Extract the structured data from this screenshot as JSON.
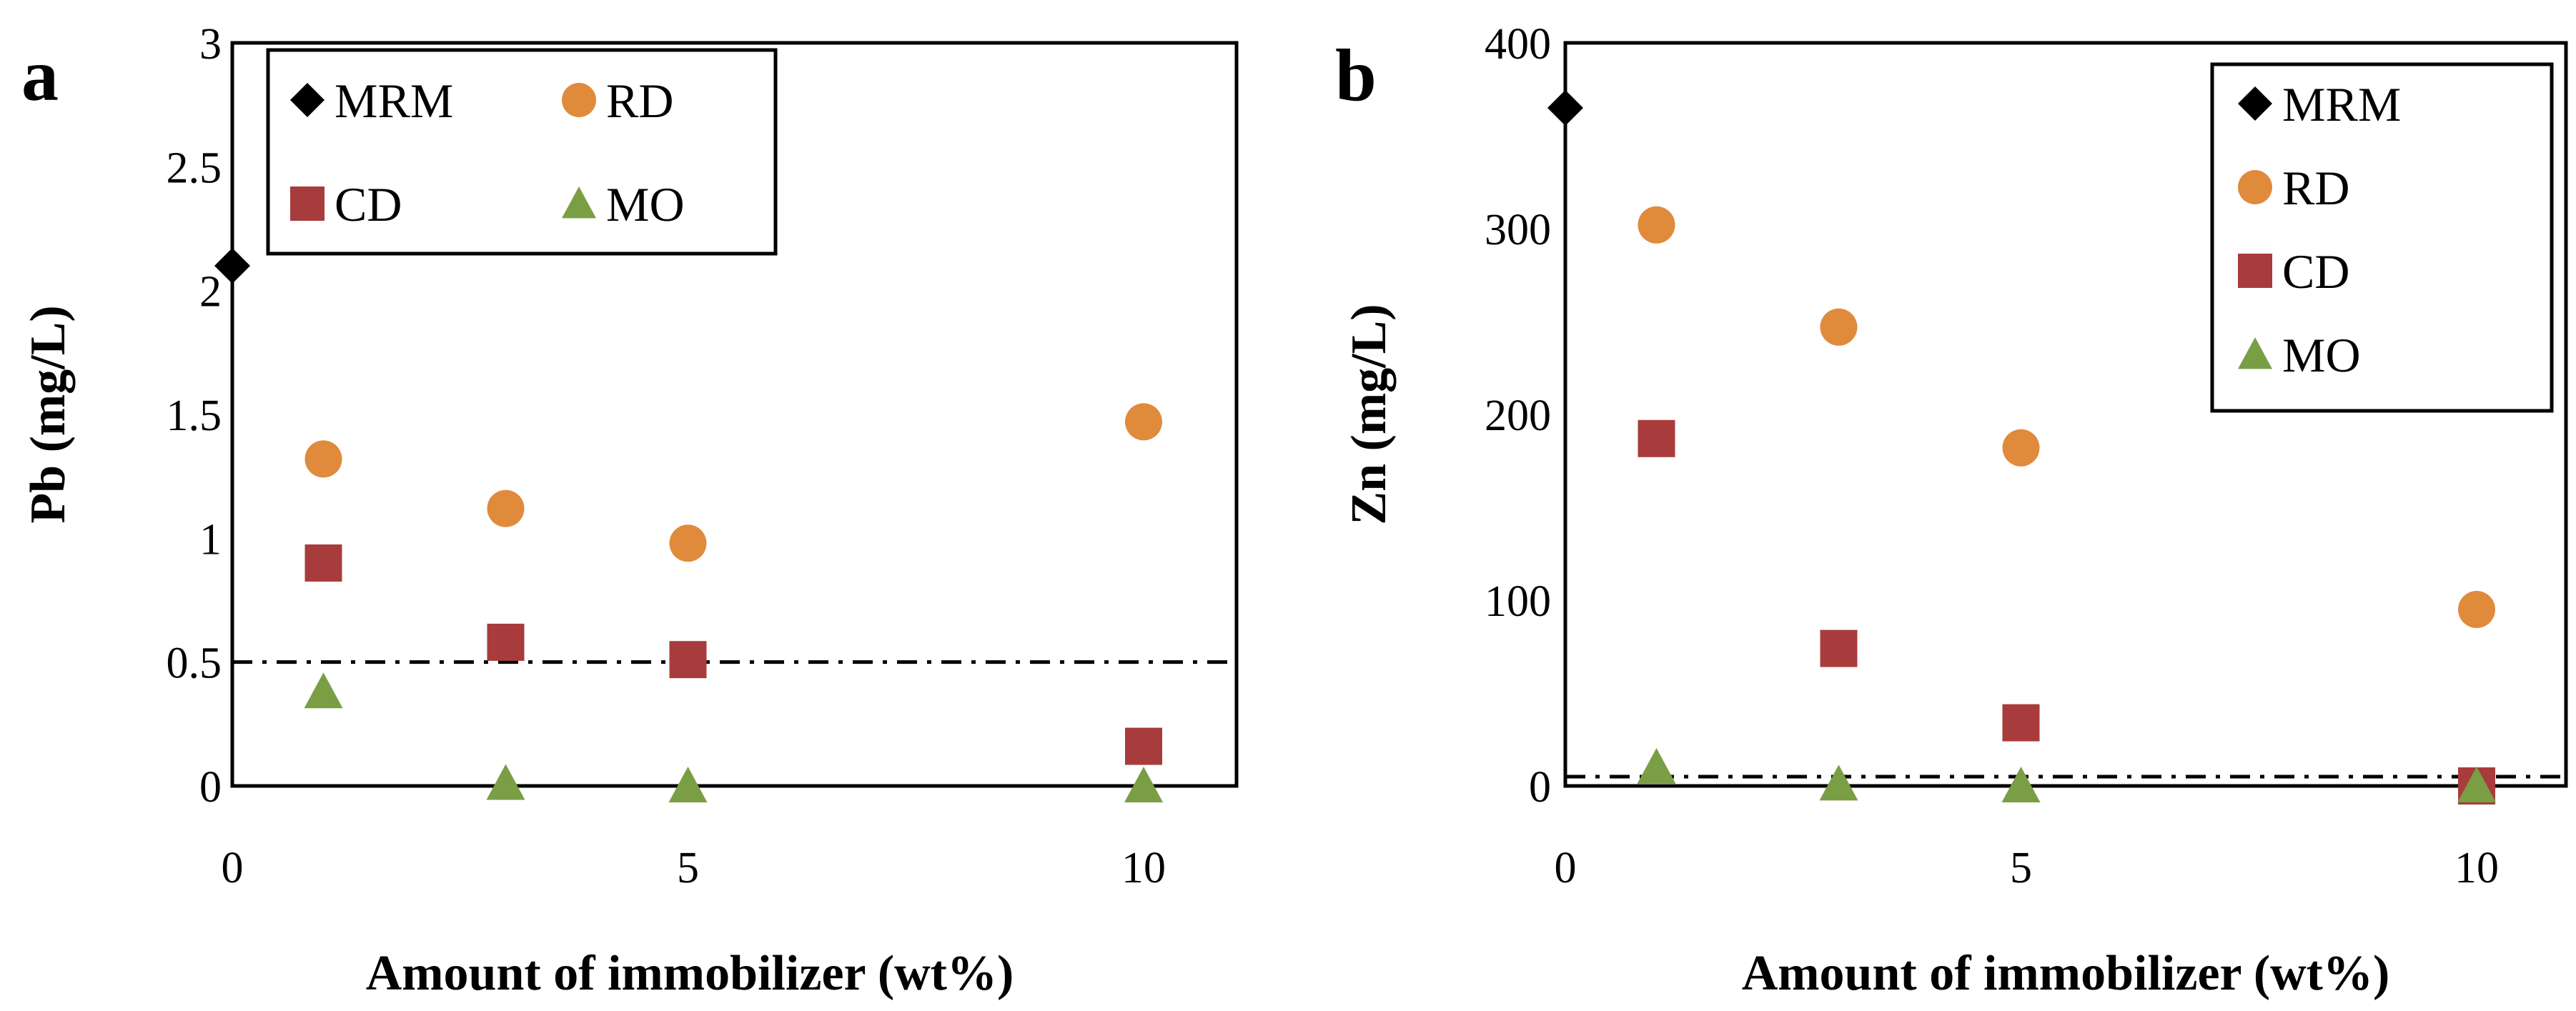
{
  "colors": {
    "MRM": "#000000",
    "RD": "#e08a3c",
    "CD": "#a83c3c",
    "MO": "#7a9e44"
  },
  "chart_data": [
    {
      "panel": "a",
      "type": "scatter",
      "xlabel": "Amount of immobilizer  (wt%)",
      "ylabel": "Pb (mg/L)",
      "x_categories": [
        "0",
        "5",
        "10"
      ],
      "y_ticks": [
        "0",
        "0.5",
        "1",
        "1.5",
        "2",
        "2.5",
        "3"
      ],
      "ylim": [
        0,
        3
      ],
      "xlim": [
        0,
        11
      ],
      "reference_line": 0.5,
      "legend": {
        "position": "top-left",
        "columns": 2,
        "items": [
          "MRM",
          "RD",
          "CD",
          "MO"
        ]
      },
      "series": [
        {
          "name": "MRM",
          "marker": "diamond",
          "points": [
            [
              0,
              2.1
            ]
          ]
        },
        {
          "name": "RD",
          "marker": "circle",
          "points": [
            [
              1,
              1.32
            ],
            [
              3,
              1.12
            ],
            [
              5,
              0.98
            ],
            [
              10,
              1.47
            ]
          ]
        },
        {
          "name": "CD",
          "marker": "square",
          "points": [
            [
              1,
              0.9
            ],
            [
              3,
              0.58
            ],
            [
              5,
              0.51
            ],
            [
              10,
              0.16
            ]
          ]
        },
        {
          "name": "MO",
          "marker": "triangle",
          "points": [
            [
              1,
              0.38
            ],
            [
              3,
              0.01
            ],
            [
              5,
              0.0
            ],
            [
              10,
              0.0
            ]
          ]
        }
      ]
    },
    {
      "panel": "b",
      "type": "scatter",
      "xlabel": "Amount of immobilizer (wt%)",
      "ylabel": "Zn (mg/L)",
      "x_categories": [
        "0",
        "5",
        "10"
      ],
      "y_ticks": [
        "0",
        "100",
        "200",
        "300",
        "400"
      ],
      "ylim": [
        0,
        400
      ],
      "xlim": [
        0,
        11
      ],
      "reference_line": 5,
      "legend": {
        "position": "top-right",
        "columns": 1,
        "items": [
          "MRM",
          "RD",
          "CD",
          "MO"
        ]
      },
      "series": [
        {
          "name": "MRM",
          "marker": "diamond",
          "points": [
            [
              0,
              365
            ]
          ]
        },
        {
          "name": "RD",
          "marker": "circle",
          "points": [
            [
              1,
              302
            ],
            [
              3,
              247
            ],
            [
              5,
              182
            ],
            [
              10,
              95
            ]
          ]
        },
        {
          "name": "CD",
          "marker": "square",
          "points": [
            [
              1,
              187
            ],
            [
              3,
              74
            ],
            [
              5,
              34
            ],
            [
              10,
              0
            ]
          ]
        },
        {
          "name": "MO",
          "marker": "triangle",
          "points": [
            [
              1,
              10
            ],
            [
              3,
              1
            ],
            [
              5,
              0
            ],
            [
              10,
              0
            ]
          ]
        }
      ]
    }
  ]
}
